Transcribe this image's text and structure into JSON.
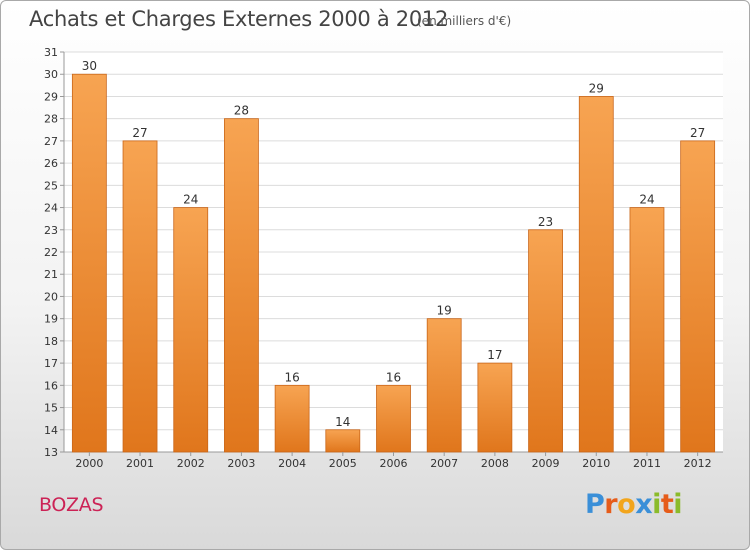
{
  "header": {
    "title": "Achats et Charges Externes 2000 à 2012",
    "subtitle": "(en milliers d'€)"
  },
  "footer": {
    "commune": "BOZAS",
    "brand_letters": [
      {
        "char": "P",
        "color": "#3a8fd8"
      },
      {
        "char": "r",
        "color": "#e65c1a"
      },
      {
        "char": "o",
        "color": "#f2a51c"
      },
      {
        "char": "x",
        "color": "#3a8fd8"
      },
      {
        "char": "i",
        "color": "#8bbb2a"
      },
      {
        "char": "t",
        "color": "#e65c1a"
      },
      {
        "char": "i",
        "color": "#8bbb2a"
      }
    ]
  },
  "colors": {
    "bar_top": "#f7a452",
    "bar_bottom": "#e0761c",
    "bar_edge": "#c9661a",
    "grid": "#dcdcdc",
    "axis": "#999999",
    "text": "#333333"
  },
  "chart_data": {
    "type": "bar",
    "categories": [
      "2000",
      "2001",
      "2002",
      "2003",
      "2004",
      "2005",
      "2006",
      "2007",
      "2008",
      "2009",
      "2010",
      "2011",
      "2012"
    ],
    "values": [
      30,
      27,
      24,
      28,
      16,
      14,
      16,
      19,
      17,
      23,
      29,
      24,
      27
    ],
    "ylim": [
      13,
      31
    ],
    "yticks": [
      13,
      14,
      15,
      16,
      17,
      18,
      19,
      20,
      21,
      22,
      23,
      24,
      25,
      26,
      27,
      28,
      29,
      30,
      31
    ],
    "grid": true,
    "data_labels": true
  }
}
